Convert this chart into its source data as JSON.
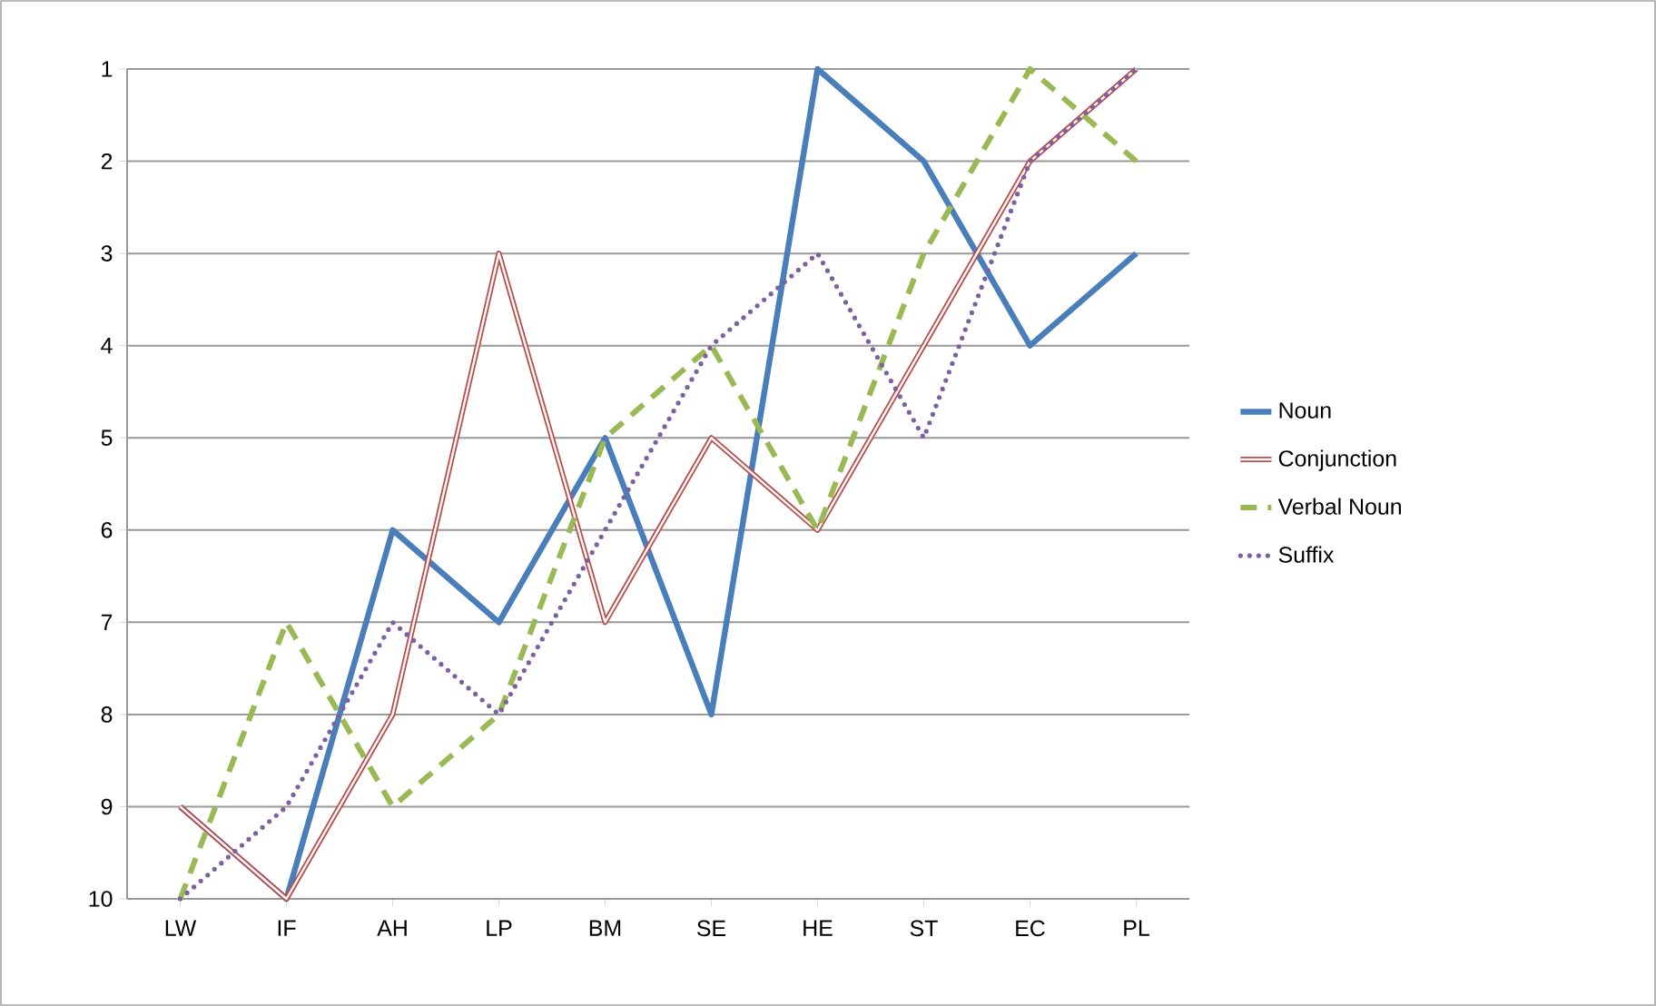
{
  "chart_data": {
    "type": "line",
    "categories": [
      "LW",
      "IF",
      "AH",
      "LP",
      "BM",
      "SE",
      "HE",
      "ST",
      "EC",
      "PL"
    ],
    "series": [
      {
        "name": "Noun",
        "color": "#4a7ebb",
        "line_style": "solid",
        "values": [
          9,
          10,
          6,
          7,
          5,
          8,
          1,
          2,
          4,
          3
        ]
      },
      {
        "name": "Conjunction",
        "color": "#be4b48",
        "line_style": "solid",
        "values": [
          9,
          10,
          8,
          3,
          7,
          5,
          6,
          4,
          2,
          1
        ]
      },
      {
        "name": "Verbal Noun",
        "color": "#98b954",
        "line_style": "dashed",
        "values": [
          10,
          7,
          9,
          8,
          5,
          4,
          6,
          3,
          1,
          2
        ]
      },
      {
        "name": "Suffix",
        "color": "#7d60a0",
        "line_style": "dotted",
        "values": [
          10,
          9,
          7,
          8,
          6,
          4,
          3,
          5,
          2,
          1
        ]
      }
    ],
    "ylim": [
      10,
      1
    ],
    "yticks": [
      1,
      2,
      3,
      4,
      5,
      6,
      7,
      8,
      9,
      10
    ],
    "grid": "y",
    "legend": "right",
    "marker": "none"
  }
}
